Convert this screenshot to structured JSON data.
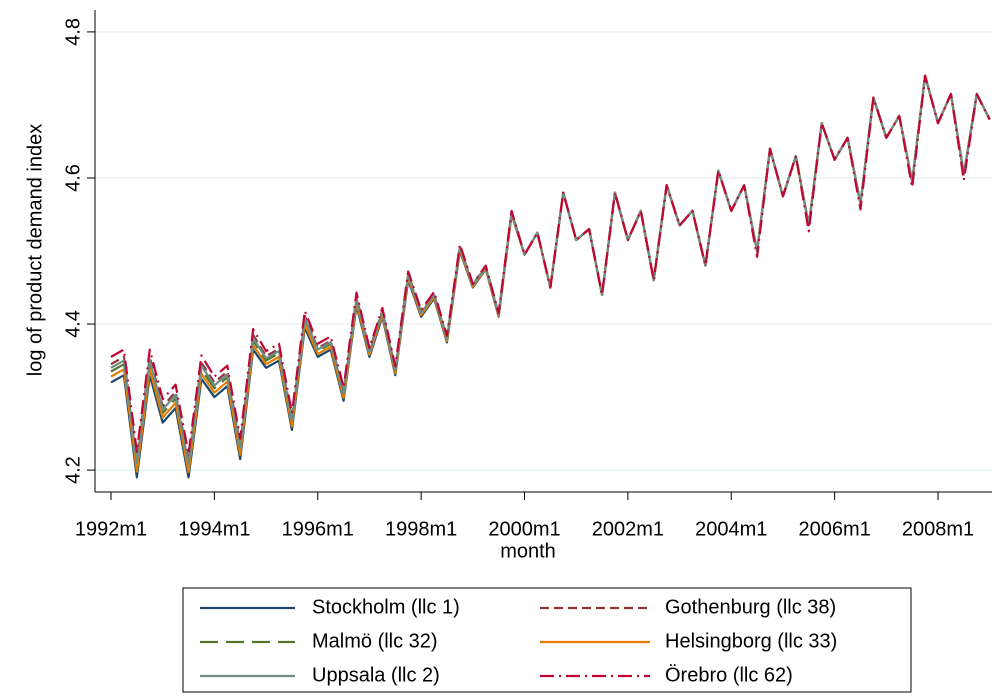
{
  "chart_data": {
    "type": "line",
    "y_label": "log of product demand index",
    "x_label": "month",
    "x": [
      "1992m1",
      "1992m4",
      "1992m7",
      "1992m10",
      "1993m1",
      "1993m4",
      "1993m7",
      "1993m10",
      "1994m1",
      "1994m4",
      "1994m7",
      "1994m10",
      "1995m1",
      "1995m4",
      "1995m7",
      "1995m10",
      "1996m1",
      "1996m4",
      "1996m7",
      "1996m10",
      "1997m1",
      "1997m4",
      "1997m7",
      "1997m10",
      "1998m1",
      "1998m4",
      "1998m7",
      "1998m10",
      "1999m1",
      "1999m4",
      "1999m7",
      "1999m10",
      "2000m1",
      "2000m4",
      "2000m7",
      "2000m10",
      "2001m1",
      "2001m4",
      "2001m7",
      "2001m10",
      "2002m1",
      "2002m4",
      "2002m7",
      "2002m10",
      "2003m1",
      "2003m4",
      "2003m7",
      "2003m10",
      "2004m1",
      "2004m4",
      "2004m7",
      "2004m10",
      "2005m1",
      "2005m4",
      "2005m7",
      "2005m10",
      "2006m1",
      "2006m4",
      "2006m7",
      "2006m10",
      "2007m1",
      "2007m4",
      "2007m7",
      "2007m10",
      "2008m1",
      "2008m4",
      "2008m7",
      "2008m10",
      "2009m1"
    ],
    "xticks": [
      "1992m1",
      "1994m1",
      "1996m1",
      "1998m1",
      "2000m1",
      "2002m1",
      "2004m1",
      "2006m1",
      "2008m1"
    ],
    "ylim": [
      4.17,
      4.83
    ],
    "yticks": [
      4.2,
      4.4,
      4.6,
      4.8
    ],
    "grid": true,
    "legend": "bottom",
    "series": [
      {
        "name": "Stockholm (llc 1)",
        "color": "#1a476f",
        "style": "solid",
        "values": [
          4.32,
          4.33,
          4.19,
          4.33,
          4.265,
          4.285,
          4.19,
          4.325,
          4.3,
          4.315,
          4.215,
          4.365,
          4.34,
          4.35,
          4.255,
          4.395,
          4.355,
          4.365,
          4.295,
          4.425,
          4.355,
          4.41,
          4.33,
          4.46,
          4.41,
          4.435,
          4.375,
          4.5,
          4.45,
          4.475,
          4.41,
          4.55,
          4.495,
          4.525,
          4.45,
          4.58,
          4.515,
          4.53,
          4.44,
          4.58,
          4.515,
          4.555,
          4.46,
          4.59,
          4.535,
          4.555,
          4.48,
          4.61,
          4.555,
          4.59,
          4.5,
          4.64,
          4.575,
          4.63,
          4.535,
          4.675,
          4.625,
          4.655,
          4.565,
          4.71,
          4.655,
          4.685,
          4.595,
          4.74,
          4.675,
          4.715,
          4.605,
          4.715,
          4.68
        ]
      },
      {
        "name": "Gothenburg (llc 38)",
        "color": "#90353b",
        "style": "dash",
        "values": [
          4.345,
          4.355,
          4.215,
          4.355,
          4.287,
          4.307,
          4.212,
          4.347,
          4.32,
          4.335,
          4.235,
          4.385,
          4.356,
          4.366,
          4.271,
          4.411,
          4.367,
          4.377,
          4.307,
          4.437,
          4.364,
          4.419,
          4.339,
          4.469,
          4.416,
          4.441,
          4.381,
          4.506,
          4.454,
          4.479,
          4.414,
          4.554,
          4.495,
          4.525,
          4.45,
          4.58,
          4.515,
          4.53,
          4.44,
          4.58,
          4.515,
          4.555,
          4.46,
          4.59,
          4.535,
          4.555,
          4.48,
          4.61,
          4.555,
          4.59,
          4.5,
          4.64,
          4.575,
          4.63,
          4.535,
          4.675,
          4.625,
          4.655,
          4.565,
          4.71,
          4.655,
          4.685,
          4.595,
          4.74,
          4.675,
          4.715,
          4.605,
          4.715,
          4.68
        ]
      },
      {
        "name": "Malmö (llc 32)",
        "color": "#55752f",
        "style": "longdash",
        "values": [
          4.335,
          4.345,
          4.205,
          4.345,
          4.278,
          4.298,
          4.203,
          4.338,
          4.312,
          4.327,
          4.227,
          4.377,
          4.35,
          4.36,
          4.265,
          4.405,
          4.363,
          4.373,
          4.303,
          4.433,
          4.36,
          4.415,
          4.335,
          4.465,
          4.414,
          4.439,
          4.379,
          4.504,
          4.452,
          4.477,
          4.412,
          4.552,
          4.495,
          4.525,
          4.45,
          4.58,
          4.515,
          4.53,
          4.44,
          4.58,
          4.515,
          4.555,
          4.46,
          4.59,
          4.535,
          4.555,
          4.48,
          4.61,
          4.555,
          4.59,
          4.5,
          4.64,
          4.575,
          4.63,
          4.535,
          4.675,
          4.625,
          4.655,
          4.565,
          4.71,
          4.655,
          4.685,
          4.595,
          4.74,
          4.675,
          4.715,
          4.605,
          4.715,
          4.68
        ]
      },
      {
        "name": "Helsingborg (llc 33)",
        "color": "#e37e00",
        "style": "solid",
        "values": [
          4.328,
          4.338,
          4.198,
          4.338,
          4.272,
          4.292,
          4.197,
          4.332,
          4.306,
          4.321,
          4.221,
          4.371,
          4.345,
          4.355,
          4.26,
          4.4,
          4.359,
          4.369,
          4.299,
          4.429,
          4.358,
          4.413,
          4.333,
          4.463,
          4.412,
          4.437,
          4.377,
          4.502,
          4.451,
          4.476,
          4.411,
          4.551,
          4.495,
          4.525,
          4.45,
          4.58,
          4.515,
          4.53,
          4.44,
          4.58,
          4.515,
          4.555,
          4.46,
          4.59,
          4.535,
          4.555,
          4.48,
          4.61,
          4.555,
          4.59,
          4.5,
          4.64,
          4.575,
          4.63,
          4.535,
          4.675,
          4.625,
          4.655,
          4.565,
          4.71,
          4.655,
          4.685,
          4.595,
          4.74,
          4.675,
          4.715,
          4.605,
          4.715,
          4.68
        ]
      },
      {
        "name": "Uppsala (llc 2)",
        "color": "#6e8e84",
        "style": "solid",
        "values": [
          4.34,
          4.35,
          4.21,
          4.35,
          4.283,
          4.303,
          4.208,
          4.343,
          4.316,
          4.331,
          4.231,
          4.381,
          4.353,
          4.363,
          4.268,
          4.408,
          4.365,
          4.375,
          4.305,
          4.435,
          4.362,
          4.417,
          4.337,
          4.467,
          4.415,
          4.44,
          4.38,
          4.505,
          4.453,
          4.478,
          4.413,
          4.553,
          4.495,
          4.525,
          4.45,
          4.58,
          4.515,
          4.53,
          4.44,
          4.58,
          4.515,
          4.555,
          4.46,
          4.59,
          4.535,
          4.555,
          4.48,
          4.61,
          4.555,
          4.59,
          4.5,
          4.64,
          4.575,
          4.63,
          4.535,
          4.675,
          4.625,
          4.655,
          4.565,
          4.71,
          4.655,
          4.685,
          4.595,
          4.74,
          4.675,
          4.715,
          4.605,
          4.715,
          4.68
        ]
      },
      {
        "name": "Örebro (llc 62)",
        "color": "#c10534",
        "style": "dashdot",
        "values": [
          4.355,
          4.365,
          4.225,
          4.365,
          4.297,
          4.317,
          4.222,
          4.357,
          4.328,
          4.343,
          4.243,
          4.393,
          4.363,
          4.373,
          4.278,
          4.418,
          4.373,
          4.383,
          4.313,
          4.443,
          4.367,
          4.422,
          4.342,
          4.472,
          4.419,
          4.444,
          4.384,
          4.509,
          4.455,
          4.48,
          4.415,
          4.555,
          4.495,
          4.525,
          4.45,
          4.58,
          4.515,
          4.53,
          4.44,
          4.58,
          4.515,
          4.555,
          4.46,
          4.59,
          4.535,
          4.555,
          4.48,
          4.61,
          4.555,
          4.59,
          4.492,
          4.64,
          4.575,
          4.63,
          4.527,
          4.675,
          4.625,
          4.655,
          4.557,
          4.71,
          4.655,
          4.685,
          4.587,
          4.74,
          4.675,
          4.715,
          4.597,
          4.715,
          4.68
        ]
      }
    ]
  }
}
